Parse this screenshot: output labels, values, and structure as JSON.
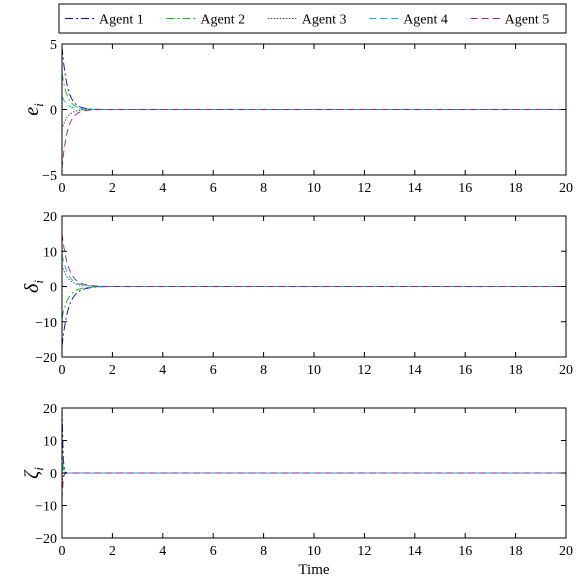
{
  "legend": [
    {
      "name": "Agent 1",
      "color": "#0000c8",
      "dash": "8 3 2 3"
    },
    {
      "name": "Agent 2",
      "color": "#00c000",
      "dash": "8 3 2 3"
    },
    {
      "name": "Agent 3",
      "color": "#404040",
      "dash": "1.5 1.5"
    },
    {
      "name": "Agent 4",
      "color": "#00b4d8",
      "dash": "7 4"
    },
    {
      "name": "Agent 5",
      "color": "#a0207a",
      "dash": "7 4"
    }
  ],
  "chart_data": [
    {
      "type": "line",
      "ylabel_symbol": "e",
      "ylabel_sub": "i",
      "xlabel": "",
      "xlim": [
        0,
        20
      ],
      "ylim": [
        -5,
        5
      ],
      "xticks": [
        "0",
        "2",
        "4",
        "6",
        "8",
        "10",
        "12",
        "14",
        "16",
        "18",
        "20"
      ],
      "yticks": [
        "-5",
        "0",
        "5"
      ],
      "ytick_values": [
        -5,
        0,
        5
      ],
      "grid": false,
      "decay_rate": 4.2,
      "series": [
        {
          "name": "Agent 1",
          "initial": 4.8
        },
        {
          "name": "Agent 2",
          "initial": 2.8
        },
        {
          "name": "Agent 3",
          "initial": -1.5
        },
        {
          "name": "Agent 4",
          "initial": 1.0
        },
        {
          "name": "Agent 5",
          "initial": -4.5
        }
      ]
    },
    {
      "type": "line",
      "ylabel_symbol": "δ",
      "ylabel_sub": "i",
      "xlabel": "",
      "xlim": [
        0,
        20
      ],
      "ylim": [
        -20,
        20
      ],
      "xticks": [
        "0",
        "2",
        "4",
        "6",
        "8",
        "10",
        "12",
        "14",
        "16",
        "18",
        "20"
      ],
      "yticks": [
        "-20",
        "-10",
        "0",
        "10",
        "20"
      ],
      "ytick_values": [
        -20,
        -10,
        0,
        10,
        20
      ],
      "grid": false,
      "decay_rate": 3.5,
      "series": [
        {
          "name": "Agent 1",
          "initial": -17
        },
        {
          "name": "Agent 2",
          "initial": -9
        },
        {
          "name": "Agent 3",
          "initial": 6
        },
        {
          "name": "Agent 4",
          "initial": 9
        },
        {
          "name": "Agent 5",
          "initial": 15
        }
      ]
    },
    {
      "type": "line",
      "ylabel_symbol": "ζ",
      "ylabel_sub": "i",
      "xlabel": "Time",
      "xlim": [
        0,
        20
      ],
      "ylim": [
        -20,
        20
      ],
      "xticks": [
        "0",
        "2",
        "4",
        "6",
        "8",
        "10",
        "12",
        "14",
        "16",
        "18",
        "20"
      ],
      "yticks": [
        "-20",
        "-10",
        "0",
        "10",
        "20"
      ],
      "ytick_values": [
        -20,
        -10,
        0,
        10,
        20
      ],
      "grid": false,
      "decay_rate": 30,
      "series": [
        {
          "name": "Agent 1",
          "initial": 20
        },
        {
          "name": "Agent 2",
          "initial": 8
        },
        {
          "name": "Agent 3",
          "initial": -3
        },
        {
          "name": "Agent 4",
          "initial": 3
        },
        {
          "name": "Agent 5",
          "initial": -8
        }
      ]
    }
  ]
}
